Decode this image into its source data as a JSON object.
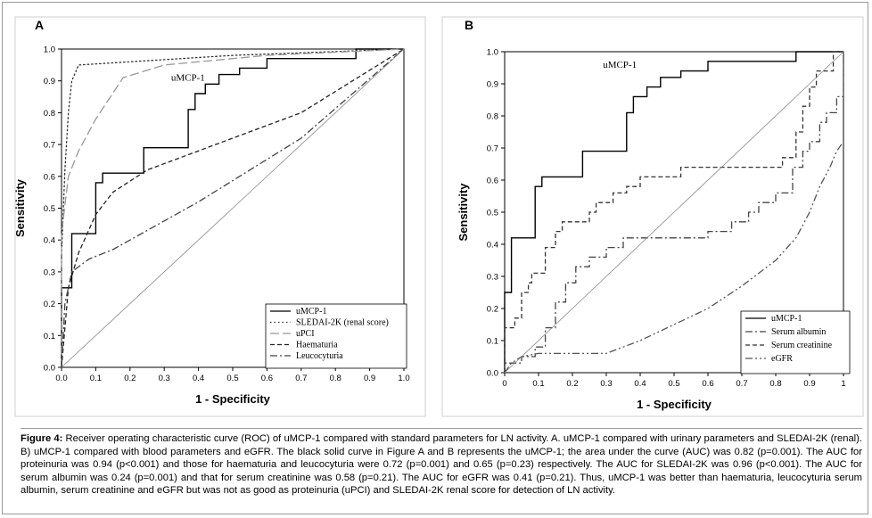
{
  "caption": {
    "label": "Figure 4:",
    "text": "Receiver operating characteristic curve (ROC) of uMCP-1 compared with standard parameters for LN activity. A. uMCP-1 compared with urinary parameters and SLEDAI-2K (renal). B) uMCP-1 compared with blood parameters and eGFR. The black solid curve in Figure A and B represents the uMCP-1; the area under the curve (AUC) was 0.82 (p=0.001). The AUC for proteinuria was 0.94 (p<0.001) and those for haematuria and leucocyturia were 0.72 (p=0.001) and 0.65 (p=0.23) respectively. The AUC for SLEDAI-2K was 0.96 (p<0.001). The AUC for serum albumin was 0.24 (p=0.001) and that for serum creatinine was 0.58 (p=0.21). The AUC for eGFR was 0.41 (p=0.21). Thus, uMCP-1 was better than haematuria, leucocyturia serum albumin, serum creatinine and eGFR but was not as good as proteinuria (uPCI) and SLEDAI-2K renal score for detection of LN activity."
  },
  "chart_data": [
    {
      "type": "line",
      "panel": "A",
      "xlabel": "1 - Specificity",
      "ylabel": "Sensitivity",
      "xlim": [
        0,
        1
      ],
      "ylim": [
        0,
        1
      ],
      "ticks": [
        "0.0",
        "0.1",
        "0.2",
        "0.3",
        "0.4",
        "0.5",
        "0.6",
        "0.7",
        "0.8",
        "0.9",
        "1.0"
      ],
      "grid": false,
      "legend_position": "bottom-right",
      "annotations": [
        {
          "text": "uMCP-1",
          "x": 0.32,
          "y": 0.9
        }
      ],
      "series": [
        {
          "name": "uMCP-1",
          "style": "solid",
          "color": "#000000",
          "step": true,
          "points": [
            [
              0,
              0
            ],
            [
              0,
              0.25
            ],
            [
              0.03,
              0.25
            ],
            [
              0.03,
              0.42
            ],
            [
              0.1,
              0.42
            ],
            [
              0.1,
              0.58
            ],
            [
              0.12,
              0.58
            ],
            [
              0.12,
              0.61
            ],
            [
              0.24,
              0.61
            ],
            [
              0.24,
              0.69
            ],
            [
              0.37,
              0.69
            ],
            [
              0.37,
              0.81
            ],
            [
              0.39,
              0.81
            ],
            [
              0.39,
              0.86
            ],
            [
              0.42,
              0.86
            ],
            [
              0.42,
              0.89
            ],
            [
              0.46,
              0.89
            ],
            [
              0.46,
              0.92
            ],
            [
              0.52,
              0.92
            ],
            [
              0.52,
              0.94
            ],
            [
              0.6,
              0.94
            ],
            [
              0.6,
              0.97
            ],
            [
              0.86,
              0.97
            ],
            [
              0.86,
              1.0
            ],
            [
              1,
              1
            ]
          ]
        },
        {
          "name": "SLEDAI-2K (renal score)",
          "style": "dotted",
          "color": "#333333",
          "step": false,
          "points": [
            [
              0,
              0
            ],
            [
              0,
              0.35
            ],
            [
              0.01,
              0.62
            ],
            [
              0.02,
              0.8
            ],
            [
              0.03,
              0.9
            ],
            [
              0.05,
              0.95
            ],
            [
              0.2,
              0.96
            ],
            [
              0.5,
              0.98
            ],
            [
              1,
              1
            ]
          ]
        },
        {
          "name": "uPCI",
          "style": "longdash",
          "color": "#999999",
          "step": false,
          "points": [
            [
              0,
              0
            ],
            [
              0,
              0.42
            ],
            [
              0.02,
              0.6
            ],
            [
              0.05,
              0.68
            ],
            [
              0.1,
              0.78
            ],
            [
              0.18,
              0.91
            ],
            [
              0.3,
              0.95
            ],
            [
              0.6,
              0.98
            ],
            [
              1,
              1
            ]
          ]
        },
        {
          "name": "Haematuria",
          "style": "dashed",
          "color": "#222222",
          "step": false,
          "points": [
            [
              0,
              0
            ],
            [
              0.02,
              0.25
            ],
            [
              0.05,
              0.36
            ],
            [
              0.1,
              0.48
            ],
            [
              0.15,
              0.55
            ],
            [
              0.25,
              0.62
            ],
            [
              0.45,
              0.7
            ],
            [
              0.7,
              0.8
            ],
            [
              1,
              1
            ]
          ]
        },
        {
          "name": "Leucocyturia",
          "style": "dashdot",
          "color": "#444444",
          "step": false,
          "points": [
            [
              0,
              0
            ],
            [
              0.01,
              0.2
            ],
            [
              0.03,
              0.3
            ],
            [
              0.08,
              0.34
            ],
            [
              0.15,
              0.37
            ],
            [
              0.4,
              0.52
            ],
            [
              0.7,
              0.72
            ],
            [
              1,
              1
            ]
          ]
        },
        {
          "name": "",
          "style": "reference",
          "color": "#888888",
          "step": false,
          "points": [
            [
              0,
              0
            ],
            [
              1,
              1
            ]
          ]
        }
      ],
      "legend": [
        "uMCP-1",
        "SLEDAI-2K (renal score)",
        "uPCI",
        "Haematuria",
        "Leucocyturia"
      ]
    },
    {
      "type": "line",
      "panel": "B",
      "xlabel": "1 - Specificity",
      "ylabel": "Sensitivity",
      "xlim": [
        0,
        1
      ],
      "ylim": [
        0,
        1
      ],
      "xticks": [
        "0",
        "0.1",
        "0.2",
        "0.3",
        "0.4",
        "0.5",
        "0.6",
        "0.7",
        "0.8",
        "0.9",
        "1"
      ],
      "yticks": [
        "0.0",
        "0.1",
        "0.2",
        "0.3",
        "0.4",
        "0.5",
        "0.6",
        "0.7",
        "0.8",
        "0.9",
        "1.0"
      ],
      "grid": false,
      "legend_position": "bottom-right",
      "annotations": [
        {
          "text": "uMCP-1",
          "x": 0.29,
          "y": 0.95
        }
      ],
      "series": [
        {
          "name": "uMCP-1",
          "style": "solid",
          "color": "#000000",
          "step": true,
          "points": [
            [
              0,
              0
            ],
            [
              0,
              0.25
            ],
            [
              0.02,
              0.25
            ],
            [
              0.02,
              0.42
            ],
            [
              0.09,
              0.42
            ],
            [
              0.09,
              0.58
            ],
            [
              0.11,
              0.58
            ],
            [
              0.11,
              0.61
            ],
            [
              0.23,
              0.61
            ],
            [
              0.23,
              0.69
            ],
            [
              0.36,
              0.69
            ],
            [
              0.36,
              0.81
            ],
            [
              0.38,
              0.81
            ],
            [
              0.38,
              0.86
            ],
            [
              0.42,
              0.86
            ],
            [
              0.42,
              0.89
            ],
            [
              0.46,
              0.89
            ],
            [
              0.46,
              0.92
            ],
            [
              0.52,
              0.92
            ],
            [
              0.52,
              0.94
            ],
            [
              0.6,
              0.94
            ],
            [
              0.6,
              0.97
            ],
            [
              0.86,
              0.97
            ],
            [
              0.86,
              1.0
            ],
            [
              1,
              1
            ]
          ]
        },
        {
          "name": "Serum albumin",
          "style": "dashdot",
          "color": "#444444",
          "step": true,
          "points": [
            [
              0,
              0
            ],
            [
              0,
              0.03
            ],
            [
              0.05,
              0.03
            ],
            [
              0.05,
              0.05
            ],
            [
              0.09,
              0.05
            ],
            [
              0.09,
              0.08
            ],
            [
              0.12,
              0.08
            ],
            [
              0.12,
              0.14
            ],
            [
              0.15,
              0.14
            ],
            [
              0.15,
              0.22
            ],
            [
              0.18,
              0.22
            ],
            [
              0.18,
              0.28
            ],
            [
              0.21,
              0.28
            ],
            [
              0.21,
              0.33
            ],
            [
              0.25,
              0.33
            ],
            [
              0.25,
              0.36
            ],
            [
              0.3,
              0.36
            ],
            [
              0.3,
              0.39
            ],
            [
              0.35,
              0.39
            ],
            [
              0.35,
              0.42
            ],
            [
              0.6,
              0.42
            ],
            [
              0.6,
              0.44
            ],
            [
              0.67,
              0.44
            ],
            [
              0.67,
              0.47
            ],
            [
              0.72,
              0.47
            ],
            [
              0.72,
              0.5
            ],
            [
              0.75,
              0.5
            ],
            [
              0.75,
              0.53
            ],
            [
              0.8,
              0.53
            ],
            [
              0.8,
              0.56
            ],
            [
              0.85,
              0.56
            ],
            [
              0.85,
              0.64
            ],
            [
              0.88,
              0.64
            ],
            [
              0.88,
              0.69
            ],
            [
              0.9,
              0.69
            ],
            [
              0.9,
              0.72
            ],
            [
              0.93,
              0.72
            ],
            [
              0.93,
              0.78
            ],
            [
              0.95,
              0.78
            ],
            [
              0.95,
              0.81
            ],
            [
              0.98,
              0.81
            ],
            [
              0.98,
              0.86
            ],
            [
              1,
              0.86
            ],
            [
              1,
              1
            ]
          ]
        },
        {
          "name": "Serum creatinine",
          "style": "dashed",
          "color": "#333333",
          "step": true,
          "points": [
            [
              0,
              0
            ],
            [
              0,
              0.14
            ],
            [
              0.03,
              0.14
            ],
            [
              0.03,
              0.17
            ],
            [
              0.05,
              0.17
            ],
            [
              0.05,
              0.25
            ],
            [
              0.07,
              0.25
            ],
            [
              0.07,
              0.28
            ],
            [
              0.08,
              0.28
            ],
            [
              0.08,
              0.31
            ],
            [
              0.12,
              0.31
            ],
            [
              0.12,
              0.39
            ],
            [
              0.15,
              0.39
            ],
            [
              0.15,
              0.44
            ],
            [
              0.17,
              0.44
            ],
            [
              0.17,
              0.47
            ],
            [
              0.25,
              0.47
            ],
            [
              0.25,
              0.5
            ],
            [
              0.27,
              0.5
            ],
            [
              0.27,
              0.53
            ],
            [
              0.32,
              0.53
            ],
            [
              0.32,
              0.56
            ],
            [
              0.36,
              0.56
            ],
            [
              0.36,
              0.58
            ],
            [
              0.4,
              0.58
            ],
            [
              0.4,
              0.61
            ],
            [
              0.52,
              0.61
            ],
            [
              0.52,
              0.64
            ],
            [
              0.82,
              0.64
            ],
            [
              0.82,
              0.67
            ],
            [
              0.86,
              0.67
            ],
            [
              0.86,
              0.75
            ],
            [
              0.88,
              0.75
            ],
            [
              0.88,
              0.83
            ],
            [
              0.9,
              0.83
            ],
            [
              0.9,
              0.89
            ],
            [
              0.92,
              0.89
            ],
            [
              0.92,
              0.94
            ],
            [
              0.97,
              0.94
            ],
            [
              0.97,
              1.0
            ],
            [
              1,
              1
            ]
          ]
        },
        {
          "name": "eGFR",
          "style": "dashdotdot",
          "color": "#555555",
          "step": false,
          "points": [
            [
              0,
              0
            ],
            [
              0.02,
              0.03
            ],
            [
              0.05,
              0.05
            ],
            [
              0.1,
              0.06
            ],
            [
              0.3,
              0.06
            ],
            [
              0.4,
              0.1
            ],
            [
              0.5,
              0.15
            ],
            [
              0.6,
              0.2
            ],
            [
              0.7,
              0.27
            ],
            [
              0.8,
              0.35
            ],
            [
              0.86,
              0.42
            ],
            [
              0.9,
              0.5
            ],
            [
              0.93,
              0.58
            ],
            [
              0.96,
              0.64
            ],
            [
              0.98,
              0.69
            ],
            [
              1,
              0.72
            ]
          ]
        },
        {
          "name": "",
          "style": "reference",
          "color": "#888888",
          "step": false,
          "points": [
            [
              0,
              0
            ],
            [
              1,
              1
            ]
          ]
        }
      ],
      "legend": [
        "uMCP-1",
        "Serum albumin",
        "Serum creatinine",
        "eGFR"
      ]
    }
  ],
  "panel_labels": [
    "A",
    "B"
  ]
}
